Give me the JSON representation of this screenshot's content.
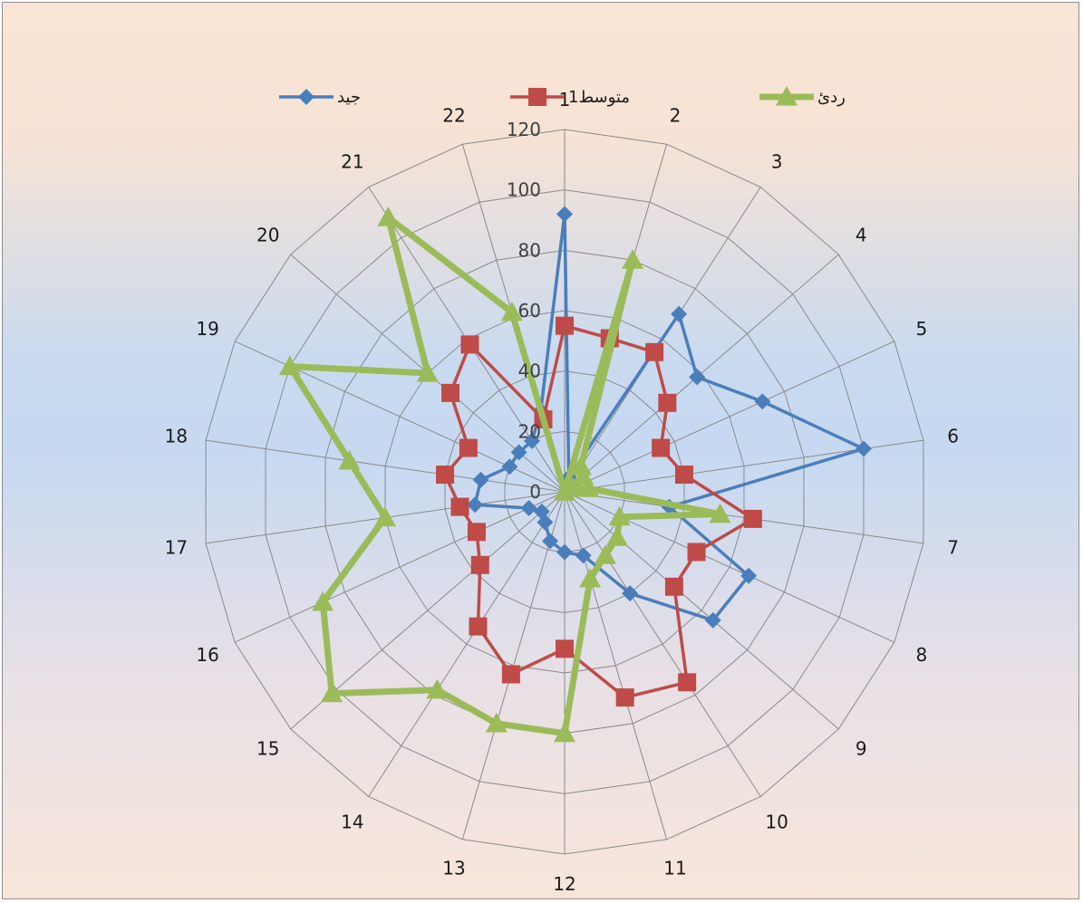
{
  "chart_data": {
    "type": "radar",
    "title": "",
    "categories": [
      "1",
      "2",
      "3",
      "4",
      "5",
      "6",
      "7",
      "8",
      "9",
      "10",
      "11",
      "12",
      "13",
      "14",
      "15",
      "16",
      "17",
      "18",
      "19",
      "20",
      "21",
      "22"
    ],
    "rlim": [
      0,
      120
    ],
    "ticks": [
      "0",
      "20",
      "40",
      "60",
      "80",
      "100",
      "120"
    ],
    "grid": true,
    "legend_position": "top",
    "series": [
      {
        "name": "جيد",
        "color": "#4a7ebb",
        "marker": "diamond",
        "values": [
          92,
          5,
          70,
          58,
          72,
          100,
          35,
          67,
          65,
          40,
          22,
          20,
          17,
          12,
          10,
          13,
          30,
          28,
          20,
          20,
          20,
          28
        ]
      },
      {
        "name": "متوسط1",
        "color": "#be4b48",
        "marker": "square",
        "values": [
          55,
          53,
          55,
          45,
          35,
          40,
          63,
          48,
          48,
          75,
          71,
          52,
          63,
          53,
          37,
          32,
          35,
          40,
          35,
          50,
          58,
          25
        ]
      },
      {
        "name": "ردئ",
        "color": "#9bbb59",
        "marker": "triangle",
        "values": [
          0,
          80,
          10,
          8,
          3,
          8,
          52,
          20,
          23,
          25,
          30,
          80,
          80,
          78,
          102,
          88,
          60,
          72,
          100,
          60,
          108,
          62
        ]
      }
    ]
  }
}
